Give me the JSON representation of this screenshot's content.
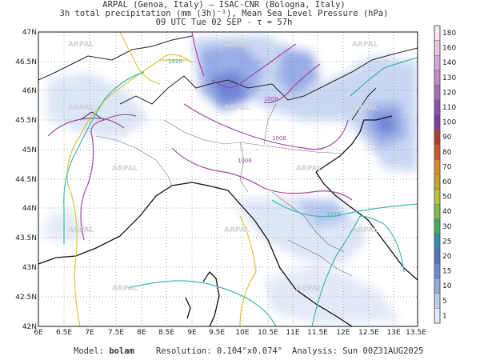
{
  "header": {
    "line1": "ARPAL (Genoa, Italy)  —  ISAC-CNR (Bologna, Italy)",
    "line2": "3h total precipitation (mm (3h)⁻¹), Mean Sea Level Pressure (hPa)",
    "line3": "09 UTC Tue 02 SEP  -  τ = 57h"
  },
  "map": {
    "lon_ticks": [
      "6E",
      "6.5E",
      "7E",
      "7.5E",
      "8E",
      "8.5E",
      "9E",
      "9.5E",
      "10E",
      "10.5E",
      "11E",
      "11.5E",
      "12E",
      "12.5E",
      "13E",
      "13.5E"
    ],
    "lat_ticks": [
      "47N",
      "46.5N",
      "46N",
      "45.5N",
      "45N",
      "44.5N",
      "44N",
      "43.5N",
      "43N",
      "42.5N",
      "42N"
    ],
    "watermark": "ARPAL",
    "isobar_labels": [
      "1010",
      "1008",
      "1008",
      "1006",
      "1010"
    ]
  },
  "legend": {
    "levels": [
      "180",
      "160",
      "140",
      "130",
      "120",
      "110",
      "100",
      "90",
      "80",
      "70",
      "60",
      "50",
      "40",
      "30",
      "25",
      "20",
      "15",
      "10",
      "5",
      "1"
    ],
    "colors": [
      "#f6e8ee",
      "#e8c7de",
      "#d6a8d1",
      "#c48ac8",
      "#a86bbd",
      "#8f4fb2",
      "#7a3ca6",
      "#b23b2a",
      "#cc5a22",
      "#e08a25",
      "#c9a42a",
      "#b8c23a",
      "#7cc049",
      "#3fae5d",
      "#2f8fae",
      "#4f73c9",
      "#6d8ad6",
      "#94abe3",
      "#bccdee",
      "#e3eaf8"
    ]
  },
  "footer": {
    "model_label": "Model:",
    "model_value": "bolam",
    "resolution": "Resolution: 0.104°x0.074°",
    "analysis": "Analysis: Sun 00Z31AUG2025"
  }
}
